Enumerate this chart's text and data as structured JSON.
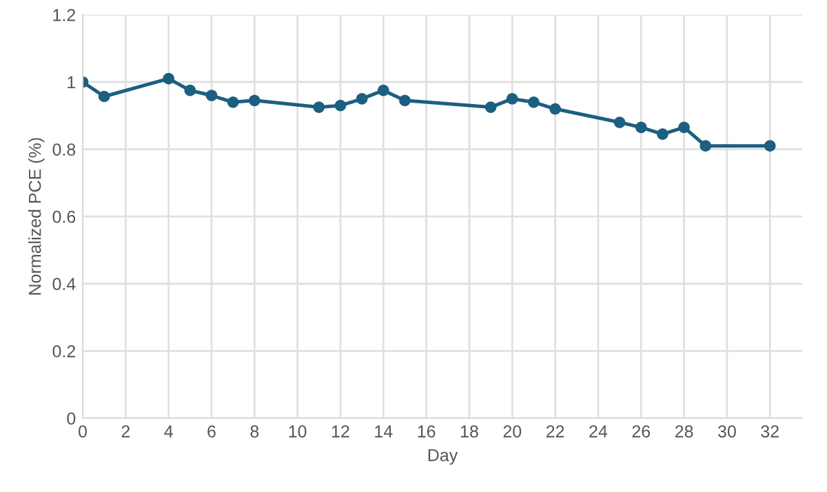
{
  "chart_data": {
    "type": "line",
    "xlabel": "Day",
    "ylabel": "Normalized PCE (%)",
    "x": [
      0,
      1,
      4,
      5,
      6,
      7,
      8,
      11,
      12,
      13,
      14,
      15,
      19,
      20,
      21,
      22,
      25,
      26,
      27,
      28,
      29,
      32
    ],
    "series": [
      {
        "color": "#1c5f80",
        "values": [
          1.0,
          0.957,
          1.01,
          0.975,
          0.96,
          0.94,
          0.945,
          0.925,
          0.93,
          0.95,
          0.975,
          0.945,
          0.925,
          0.95,
          0.94,
          0.92,
          0.88,
          0.865,
          0.845,
          0.865,
          0.81,
          0.81
        ]
      }
    ],
    "xlim": [
      0,
      33.5
    ],
    "xticks": [
      0,
      2,
      4,
      6,
      8,
      10,
      12,
      14,
      16,
      18,
      20,
      22,
      24,
      26,
      28,
      30,
      32
    ],
    "ylim": [
      0,
      1.2
    ],
    "yticks": [
      0,
      0.2,
      0.4,
      0.6,
      0.8,
      1,
      1.2
    ],
    "grid": true,
    "marker": "circle",
    "line_style": "solid",
    "legend": false
  }
}
